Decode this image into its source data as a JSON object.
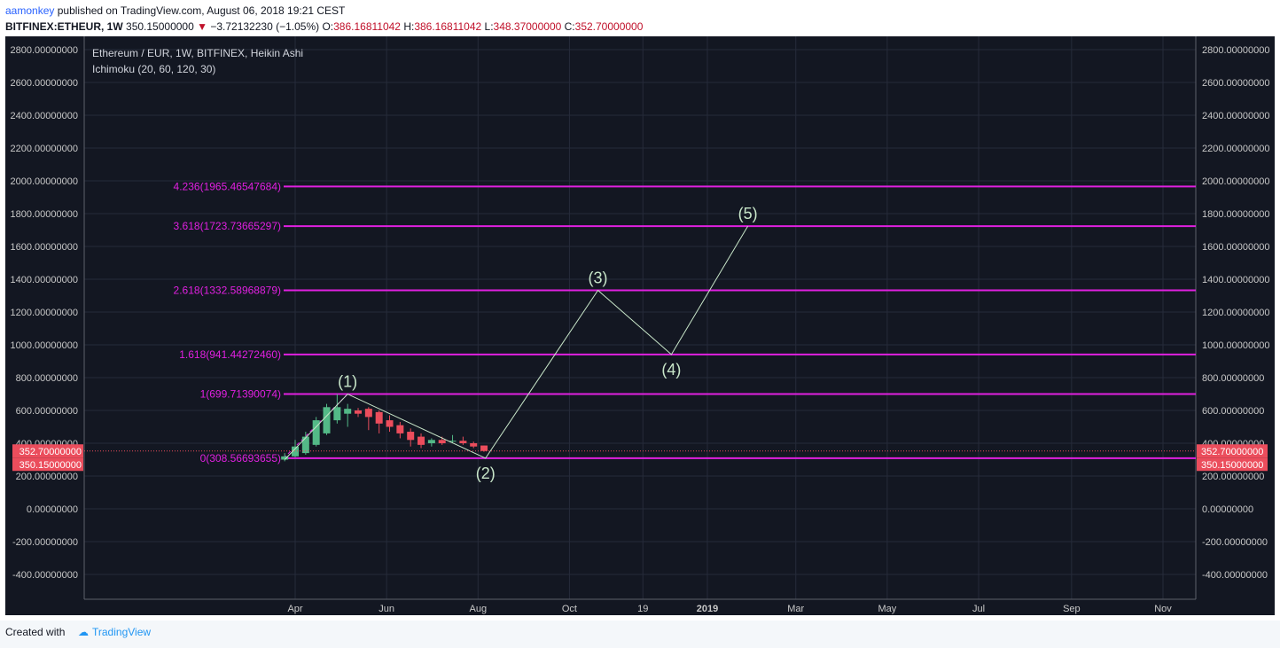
{
  "header": {
    "author": "aamonkey",
    "published": "published on TradingView.com, August 06, 2018 19:21 CEST"
  },
  "symbol_line": {
    "symbol": "BITFINEX:ETHEUR, 1W",
    "last": "350.15000000",
    "change": "−3.72132230 (−1.05%)",
    "o_label": "O:",
    "o": "386.16811042",
    "h_label": "H:",
    "h": "386.16811042",
    "l_label": "L:",
    "l": "348.37000000",
    "c_label": "C:",
    "c": "352.70000000"
  },
  "footer": {
    "created": "Created with",
    "brand": "TradingView"
  },
  "colors": {
    "background": "#131722",
    "grid": "#262b3a",
    "fib": "#e020e0",
    "wave": "#c8e6c9",
    "up": "#53b987",
    "down": "#eb4d5c",
    "price_tag": "#eb4d5c"
  },
  "chart_data": {
    "type": "candlestick",
    "title": "Ethereum / EUR, 1W, BITFINEX, Heikin Ashi",
    "indicator": "Ichimoku (20, 60, 120, 30)",
    "ylim": [
      -400,
      2800
    ],
    "y_ticks": [
      "2800.00000000",
      "2600.00000000",
      "2400.00000000",
      "2200.00000000",
      "2000.00000000",
      "1800.00000000",
      "1600.00000000",
      "1400.00000000",
      "1200.00000000",
      "1000.00000000",
      "800.00000000",
      "600.00000000",
      "400.00000000",
      "200.00000000",
      "0.00000000",
      "-200.00000000",
      "-400.00000000"
    ],
    "y_tick_values": [
      2800,
      2600,
      2400,
      2200,
      2000,
      1800,
      1600,
      1400,
      1200,
      1000,
      800,
      600,
      400,
      200,
      0,
      -200,
      -400
    ],
    "x_labels": [
      "Apr",
      "Jun",
      "Aug",
      "Oct",
      "19",
      "2019",
      "Mar",
      "May",
      "Jul",
      "Sep",
      "Nov"
    ],
    "x_label_dates": [
      "2018-04-01",
      "2018-06-01",
      "2018-08-01",
      "2018-10-01",
      "2018-11-19",
      "2019-01-01",
      "2019-03-01",
      "2019-05-01",
      "2019-07-01",
      "2019-09-01",
      "2019-11-01"
    ],
    "fib_levels": [
      {
        "label": "4.236(1965.46547684)",
        "value": 1965.46547684
      },
      {
        "label": "3.618(1723.73665297)",
        "value": 1723.73665297
      },
      {
        "label": "2.618(1332.58968879)",
        "value": 1332.58968879
      },
      {
        "label": "1.618(941.44272460)",
        "value": 941.4427246
      },
      {
        "label": "1(699.71390074)",
        "value": 699.71390074
      },
      {
        "label": "0(308.56693655)",
        "value": 308.56693655
      }
    ],
    "waves": [
      {
        "label": "(1)",
        "date": "2018-05-06",
        "value": 699.71
      },
      {
        "label": "(2)",
        "date": "2018-08-06",
        "value": 308.57
      },
      {
        "label": "(3)",
        "date": "2018-10-20",
        "value": 1332.59
      },
      {
        "label": "(4)",
        "date": "2018-12-08",
        "value": 941.44
      },
      {
        "label": "(5)",
        "date": "2019-01-28",
        "value": 1723.74
      }
    ],
    "wave_start": {
      "date": "2018-03-25",
      "value": 300
    },
    "candles": [
      {
        "date": "2018-03-25",
        "o": 300,
        "h": 340,
        "l": 290,
        "c": 320
      },
      {
        "date": "2018-04-01",
        "o": 320,
        "h": 420,
        "l": 315,
        "c": 380
      },
      {
        "date": "2018-04-08",
        "o": 340,
        "h": 470,
        "l": 330,
        "c": 440
      },
      {
        "date": "2018-04-15",
        "o": 390,
        "h": 560,
        "l": 380,
        "c": 540
      },
      {
        "date": "2018-04-22",
        "o": 460,
        "h": 640,
        "l": 450,
        "c": 620
      },
      {
        "date": "2018-04-29",
        "o": 540,
        "h": 700,
        "l": 520,
        "c": 620
      },
      {
        "date": "2018-05-06",
        "o": 580,
        "h": 640,
        "l": 500,
        "c": 610
      },
      {
        "date": "2018-05-13",
        "o": 600,
        "h": 615,
        "l": 560,
        "c": 580
      },
      {
        "date": "2018-05-20",
        "o": 610,
        "h": 620,
        "l": 480,
        "c": 560
      },
      {
        "date": "2018-05-27",
        "o": 590,
        "h": 600,
        "l": 460,
        "c": 520
      },
      {
        "date": "2018-06-03",
        "o": 540,
        "h": 570,
        "l": 470,
        "c": 500
      },
      {
        "date": "2018-06-10",
        "o": 510,
        "h": 530,
        "l": 430,
        "c": 460
      },
      {
        "date": "2018-06-17",
        "o": 470,
        "h": 490,
        "l": 380,
        "c": 420
      },
      {
        "date": "2018-06-24",
        "o": 440,
        "h": 460,
        "l": 370,
        "c": 390
      },
      {
        "date": "2018-07-01",
        "o": 400,
        "h": 430,
        "l": 380,
        "c": 420
      },
      {
        "date": "2018-07-08",
        "o": 420,
        "h": 440,
        "l": 390,
        "c": 400
      },
      {
        "date": "2018-07-15",
        "o": 410,
        "h": 450,
        "l": 400,
        "c": 415
      },
      {
        "date": "2018-07-22",
        "o": 415,
        "h": 440,
        "l": 390,
        "c": 400
      },
      {
        "date": "2018-07-29",
        "o": 400,
        "h": 410,
        "l": 370,
        "c": 380
      },
      {
        "date": "2018-08-05",
        "o": 386.17,
        "h": 386.17,
        "l": 348.37,
        "c": 352.7
      }
    ],
    "price_tags": [
      {
        "label": "352.70000000",
        "value": 352.7
      },
      {
        "label": "350.15000000",
        "value": 350.15
      }
    ]
  }
}
